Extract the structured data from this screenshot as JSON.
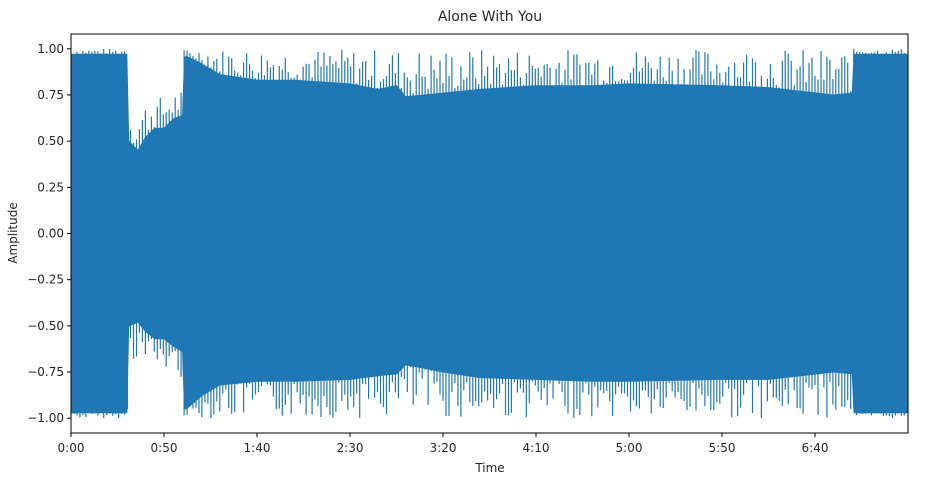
{
  "chart_data": {
    "type": "area",
    "title": "Alone With You",
    "xlabel": "Time",
    "ylabel": "Amplitude",
    "xlim": [
      0,
      450
    ],
    "ylim": [
      -1.08,
      1.08
    ],
    "x_ticks": [
      {
        "value": 0,
        "label": "0:00"
      },
      {
        "value": 50,
        "label": "0:50"
      },
      {
        "value": 100,
        "label": "1:40"
      },
      {
        "value": 150,
        "label": "2:30"
      },
      {
        "value": 200,
        "label": "3:20"
      },
      {
        "value": 250,
        "label": "4:10"
      },
      {
        "value": 300,
        "label": "5:00"
      },
      {
        "value": 350,
        "label": "5:50"
      },
      {
        "value": 400,
        "label": "6:40"
      }
    ],
    "y_ticks": [
      {
        "value": 1.0,
        "label": "1.00"
      },
      {
        "value": 0.75,
        "label": "0.75"
      },
      {
        "value": 0.5,
        "label": "0.50"
      },
      {
        "value": 0.25,
        "label": "0.25"
      },
      {
        "value": 0.0,
        "label": "0.00"
      },
      {
        "value": -0.25,
        "label": "−0.25"
      },
      {
        "value": -0.5,
        "label": "−0.50"
      },
      {
        "value": -0.75,
        "label": "−0.75"
      },
      {
        "value": -1.0,
        "label": "−1.00"
      }
    ],
    "series": [
      {
        "color": "#1f77b4",
        "envelope": {
          "x": [
            0,
            30,
            31,
            36,
            40,
            45,
            50,
            55,
            60,
            61,
            62,
            70,
            80,
            100,
            120,
            150,
            165,
            175,
            180,
            190,
            200,
            220,
            250,
            280,
            300,
            350,
            375,
            410,
            420,
            421,
            450
          ],
          "upper": [
            0.97,
            0.97,
            0.5,
            0.45,
            0.52,
            0.57,
            0.57,
            0.62,
            0.64,
            0.95,
            0.96,
            0.92,
            0.86,
            0.83,
            0.83,
            0.81,
            0.78,
            0.8,
            0.74,
            0.75,
            0.76,
            0.78,
            0.8,
            0.8,
            0.81,
            0.8,
            0.79,
            0.75,
            0.76,
            0.97,
            0.97
          ],
          "lower": [
            -0.97,
            -0.97,
            -0.5,
            -0.48,
            -0.53,
            -0.57,
            -0.57,
            -0.61,
            -0.64,
            -0.95,
            -0.95,
            -0.88,
            -0.82,
            -0.8,
            -0.8,
            -0.79,
            -0.77,
            -0.76,
            -0.71,
            -0.73,
            -0.75,
            -0.78,
            -0.79,
            -0.8,
            -0.8,
            -0.79,
            -0.79,
            -0.75,
            -0.76,
            -0.97,
            -0.97
          ]
        }
      }
    ],
    "grid": false
  }
}
